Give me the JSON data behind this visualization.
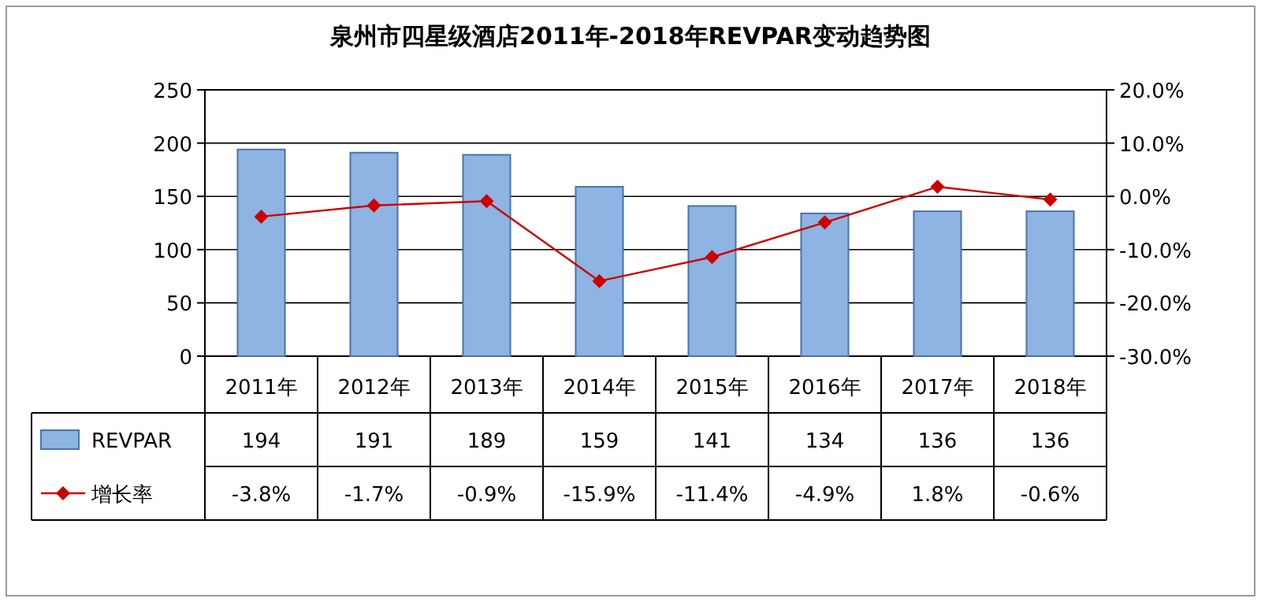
{
  "chart_data": {
    "type": "bar",
    "title": "泉州市四星级酒店2011年-2018年REVPAR变动趋势图",
    "categories": [
      "2011年",
      "2012年",
      "2013年",
      "2014年",
      "2015年",
      "2016年",
      "2017年",
      "2018年"
    ],
    "series": [
      {
        "name": "REVPAR",
        "color": "#8db4e2",
        "values": [
          194,
          191,
          189,
          159,
          141,
          134,
          136,
          136
        ],
        "value_labels": [
          "194",
          "191",
          "189",
          "159",
          "141",
          "134",
          "136",
          "136"
        ]
      },
      {
        "name": "增长率",
        "type": "line",
        "axis": "y2",
        "color": "#cc0000",
        "values": [
          -3.8,
          -1.7,
          -0.9,
          -15.9,
          -11.4,
          -4.9,
          1.8,
          -0.6
        ],
        "value_labels": [
          "-3.8%",
          "-1.7%",
          "-0.9%",
          "-15.9%",
          "-11.4%",
          "-4.9%",
          "1.8%",
          "-0.6%"
        ]
      }
    ],
    "ylim": [
      0,
      250
    ],
    "yticks": [
      0,
      50,
      100,
      150,
      200,
      250
    ],
    "y2lim": [
      -30,
      20
    ],
    "y2ticks": [
      {
        "value": -30,
        "label": "-30.0%"
      },
      {
        "value": -20,
        "label": "-20.0%"
      },
      {
        "value": -10,
        "label": "-10.0%"
      },
      {
        "value": 0,
        "label": "0.0%"
      },
      {
        "value": 10,
        "label": "10.0%"
      },
      {
        "value": 20,
        "label": "20.0%"
      }
    ],
    "grid": "y",
    "legend": "bottom left",
    "marker": "diamond"
  }
}
